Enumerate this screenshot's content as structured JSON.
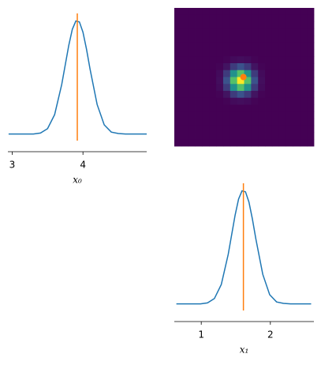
{
  "chart_data": [
    {
      "type": "line",
      "color": "#1f77b4",
      "x": [
        2.95,
        3.1,
        3.2,
        3.3,
        3.4,
        3.5,
        3.6,
        3.7,
        3.8,
        3.85,
        3.9,
        3.95,
        4.0,
        4.05,
        4.1,
        4.2,
        4.3,
        4.4,
        4.5,
        4.6,
        4.8,
        4.9
      ],
      "values": [
        0,
        0,
        0,
        0,
        0.02,
        0.11,
        0.4,
        1.02,
        1.83,
        2.16,
        2.33,
        2.31,
        2.1,
        1.75,
        1.34,
        0.61,
        0.19,
        0.04,
        0.01,
        0,
        0,
        0
      ],
      "xlim": [
        2.94,
        4.9
      ],
      "ylim": [
        -0.25,
        2.6
      ],
      "xticks": [
        3,
        4
      ],
      "xlabel": "x₀",
      "vline": {
        "x": 3.92,
        "color": "#ff7f0e"
      }
    },
    {
      "type": "heatmap",
      "colormap": "viridis",
      "xlim": [
        0.61,
        2.63
      ],
      "ylim": [
        2.94,
        4.9
      ],
      "z": [
        [
          0,
          0,
          0,
          0,
          0,
          0,
          0,
          0,
          0,
          0,
          0,
          0,
          0,
          0,
          0,
          0,
          0,
          0,
          0,
          0
        ],
        [
          0,
          0,
          0,
          0,
          0,
          0,
          0,
          0,
          0,
          0,
          0,
          0,
          0,
          0,
          0,
          0,
          0,
          0,
          0,
          0
        ],
        [
          0,
          0,
          0,
          0,
          0,
          0,
          0,
          0,
          0,
          0,
          0,
          0,
          0,
          0,
          0,
          0,
          0,
          0,
          0,
          0
        ],
        [
          0,
          0,
          0,
          0,
          0,
          0,
          0,
          0,
          0,
          0,
          0,
          0,
          0,
          0,
          0,
          0,
          0,
          0,
          0,
          0
        ],
        [
          0,
          0,
          0,
          0,
          0,
          0,
          0,
          0,
          0,
          0,
          0,
          0,
          0,
          0,
          0,
          0,
          0,
          0,
          0,
          0
        ],
        [
          0,
          0,
          0,
          0,
          0,
          0,
          0,
          0,
          0,
          0,
          0,
          0,
          0,
          0,
          0,
          0,
          0,
          0,
          0,
          0
        ],
        [
          0,
          0,
          0,
          0,
          0,
          0,
          0,
          0,
          0,
          0,
          0,
          0,
          0,
          0,
          0,
          0,
          0,
          0,
          0,
          0
        ],
        [
          0,
          0,
          0,
          0,
          0,
          0,
          0,
          0.01,
          0.03,
          0.04,
          0.03,
          0.01,
          0,
          0,
          0,
          0,
          0,
          0,
          0,
          0
        ],
        [
          0,
          0,
          0,
          0,
          0,
          0,
          0.01,
          0.06,
          0.18,
          0.25,
          0.18,
          0.06,
          0.01,
          0,
          0,
          0,
          0,
          0,
          0,
          0
        ],
        [
          0,
          0,
          0,
          0,
          0,
          0,
          0.03,
          0.18,
          0.5,
          0.71,
          0.5,
          0.18,
          0.03,
          0,
          0,
          0,
          0,
          0,
          0,
          0
        ],
        [
          0,
          0,
          0,
          0,
          0,
          0,
          0.04,
          0.25,
          0.71,
          1,
          0.71,
          0.25,
          0.04,
          0,
          0,
          0,
          0,
          0,
          0,
          0
        ],
        [
          0,
          0,
          0,
          0,
          0,
          0,
          0.03,
          0.18,
          0.5,
          0.71,
          0.5,
          0.18,
          0.03,
          0,
          0,
          0,
          0,
          0,
          0,
          0
        ],
        [
          0,
          0,
          0,
          0,
          0,
          0,
          0.01,
          0.06,
          0.18,
          0.25,
          0.18,
          0.06,
          0.01,
          0,
          0,
          0,
          0,
          0,
          0,
          0
        ],
        [
          0,
          0,
          0,
          0,
          0,
          0,
          0,
          0.01,
          0.03,
          0.04,
          0.03,
          0.01,
          0,
          0,
          0,
          0,
          0,
          0,
          0,
          0
        ],
        [
          0,
          0,
          0,
          0,
          0,
          0,
          0,
          0,
          0,
          0,
          0,
          0,
          0,
          0,
          0,
          0,
          0,
          0,
          0,
          0
        ],
        [
          0,
          0,
          0,
          0,
          0,
          0,
          0,
          0,
          0,
          0,
          0,
          0,
          0,
          0,
          0,
          0,
          0,
          0,
          0,
          0
        ],
        [
          0,
          0,
          0,
          0,
          0,
          0,
          0,
          0,
          0,
          0,
          0,
          0,
          0,
          0,
          0,
          0,
          0,
          0,
          0,
          0
        ],
        [
          0,
          0,
          0,
          0,
          0,
          0,
          0,
          0,
          0,
          0,
          0,
          0,
          0,
          0,
          0,
          0,
          0,
          0,
          0,
          0
        ],
        [
          0,
          0,
          0,
          0,
          0,
          0,
          0,
          0,
          0,
          0,
          0,
          0,
          0,
          0,
          0,
          0,
          0,
          0,
          0,
          0
        ],
        [
          0,
          0,
          0,
          0,
          0,
          0,
          0,
          0,
          0,
          0,
          0,
          0,
          0,
          0,
          0,
          0,
          0,
          0,
          0,
          0
        ]
      ],
      "points": {
        "x": [
          1.61
        ],
        "y": [
          3.92
        ],
        "color": "#ff7f0e"
      }
    },
    {
      "type": "line",
      "color": "#1f77b4",
      "x": [
        0.64,
        0.79,
        0.89,
        0.99,
        1.09,
        1.19,
        1.29,
        1.39,
        1.49,
        1.54,
        1.59,
        1.64,
        1.69,
        1.74,
        1.79,
        1.89,
        1.99,
        2.09,
        2.19,
        2.29,
        2.49,
        2.59
      ],
      "values": [
        0,
        0,
        0,
        0,
        0.02,
        0.11,
        0.4,
        1.02,
        1.83,
        2.16,
        2.33,
        2.31,
        2.1,
        1.75,
        1.34,
        0.61,
        0.19,
        0.04,
        0.01,
        0,
        0,
        0
      ],
      "xlim": [
        0.61,
        2.63
      ],
      "ylim": [
        -0.25,
        2.6
      ],
      "xticks": [
        1,
        2
      ],
      "xlabel": "x₁",
      "vline": {
        "x": 1.61,
        "color": "#ff7f0e"
      }
    }
  ]
}
